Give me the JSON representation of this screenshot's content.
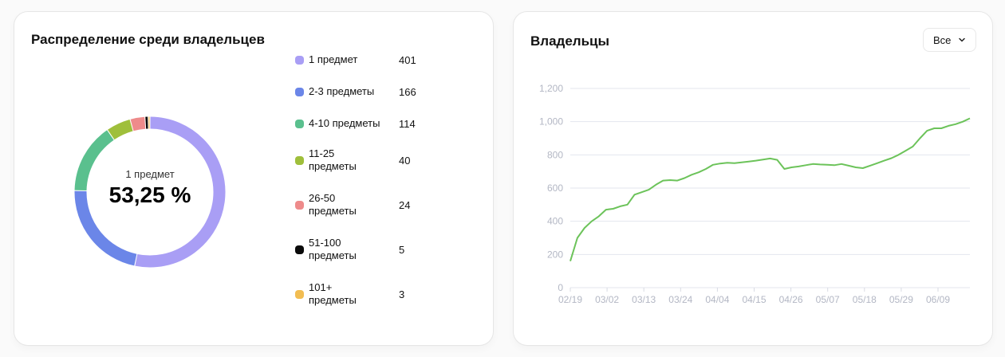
{
  "left_card": {
    "title": "Распределение среди владельцев",
    "center_label": "1 предмет",
    "center_value": "53,25 %",
    "legend": [
      {
        "label": "1 предмет",
        "value": "401",
        "color": "#a99ef5"
      },
      {
        "label": "2-3 предметы",
        "value": "166",
        "color": "#6b86e8"
      },
      {
        "label": "4-10 предметы",
        "value": "114",
        "color": "#5ac08e"
      },
      {
        "label": "11-25 предметы",
        "value": "40",
        "color": "#9fbf3b"
      },
      {
        "label": "26-50 предметы",
        "value": "24",
        "color": "#ee8b8b"
      },
      {
        "label": "51-100 предметы",
        "value": "5",
        "color": "#0a0a0a"
      },
      {
        "label": "101+ предметы",
        "value": "3",
        "color": "#f2bd52"
      }
    ]
  },
  "right_card": {
    "title": "Владельцы",
    "filter": {
      "selected": "Все",
      "icon": "chevron-down-icon"
    }
  },
  "chart_data": [
    {
      "type": "pie",
      "title": "Распределение среди владельцев",
      "categories": [
        "1 предмет",
        "2-3 предметы",
        "4-10 предметы",
        "11-25 предметы",
        "26-50 предметы",
        "51-100 предметы",
        "101+ предметы"
      ],
      "values": [
        401,
        166,
        114,
        40,
        24,
        5,
        3
      ],
      "colors": [
        "#a99ef5",
        "#6b86e8",
        "#5ac08e",
        "#9fbf3b",
        "#ee8b8b",
        "#0a0a0a",
        "#f2bd52"
      ],
      "donut": true,
      "center_text": "1 предмет 53,25 %",
      "legend_position": "right"
    },
    {
      "type": "line",
      "title": "Владельцы",
      "xlabel": "",
      "ylabel": "",
      "ylim": [
        0,
        1200
      ],
      "yticks": [
        "0",
        "200",
        "400",
        "600",
        "800",
        "1,000",
        "1,200"
      ],
      "xticks": [
        "02/19",
        "03/02",
        "03/13",
        "03/24",
        "04/04",
        "04/15",
        "04/26",
        "05/07",
        "05/18",
        "05/29",
        "06/09"
      ],
      "grid": true,
      "color": "#6cc35a",
      "series": [
        {
          "name": "Владельцы",
          "x": [
            "02/19",
            "02/21",
            "02/23",
            "02/25",
            "02/27",
            "03/02",
            "03/04",
            "03/06",
            "03/08",
            "03/10",
            "03/11",
            "03/13",
            "03/15",
            "03/17",
            "03/19",
            "03/21",
            "03/24",
            "03/26",
            "03/28",
            "03/30",
            "04/01",
            "04/04",
            "04/06",
            "04/08",
            "04/10",
            "04/12",
            "04/15",
            "04/17",
            "04/19",
            "04/21",
            "04/22",
            "04/24",
            "04/26",
            "04/28",
            "04/30",
            "05/02",
            "05/04",
            "05/07",
            "05/09",
            "05/11",
            "05/13",
            "05/15",
            "05/18",
            "05/20",
            "05/22",
            "05/24",
            "05/26",
            "05/29",
            "05/31",
            "06/02",
            "06/04",
            "06/06",
            "06/09",
            "06/11",
            "06/13",
            "06/15",
            "06/16"
          ],
          "values": [
            160,
            300,
            360,
            400,
            430,
            470,
            475,
            490,
            500,
            560,
            575,
            590,
            620,
            645,
            648,
            645,
            660,
            680,
            695,
            715,
            740,
            748,
            752,
            750,
            755,
            760,
            765,
            772,
            778,
            770,
            715,
            725,
            730,
            738,
            745,
            742,
            740,
            738,
            745,
            735,
            725,
            720,
            735,
            750,
            765,
            780,
            800,
            825,
            850,
            900,
            945,
            960,
            960,
            975,
            985,
            1000,
            1020
          ]
        }
      ]
    }
  ]
}
